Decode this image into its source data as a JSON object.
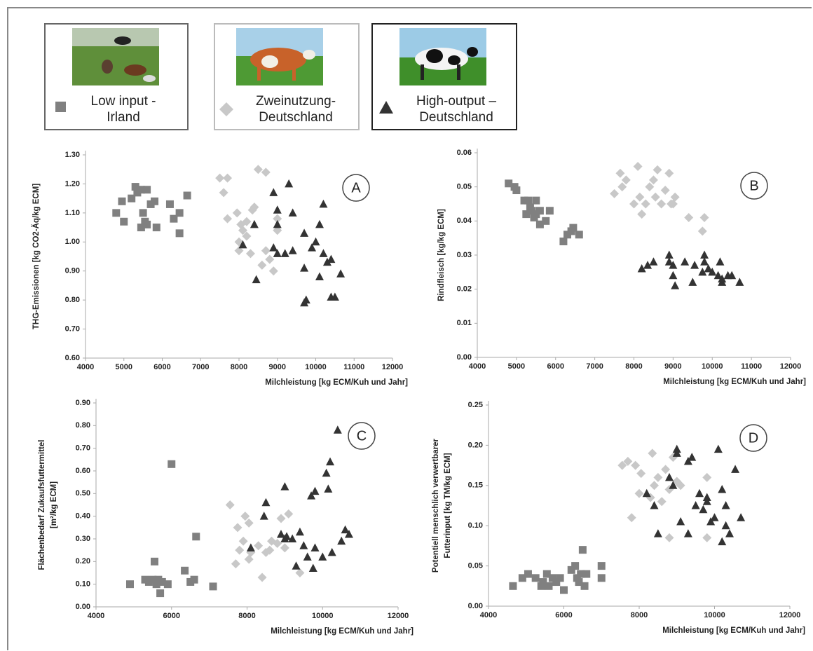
{
  "chart_data": [
    {
      "type": "scatter",
      "label": "A",
      "xlabel": "Milchleistung [kg ECM/Kuh und Jahr]",
      "ylabel": [
        "THG-Emissionen [kg CO2-Äq/kg ECM]"
      ],
      "xlim": [
        4000,
        12000
      ],
      "xticks": [
        4000,
        5000,
        6000,
        7000,
        8000,
        9000,
        10000,
        11000,
        12000
      ],
      "ylim": [
        0.6,
        1.3
      ],
      "yticks": [
        {
          "value": 0.6,
          "label": "0.60"
        },
        {
          "value": 0.7,
          "label": "0.70"
        },
        {
          "value": 0.8,
          "label": "0.80"
        },
        {
          "value": 0.9,
          "label": "0.90"
        },
        {
          "value": 1.0,
          "label": "1.00"
        },
        {
          "value": 1.1,
          "label": "1.10"
        },
        {
          "value": 1.2,
          "label": "1.20"
        },
        {
          "value": 1.3,
          "label": "1.30"
        }
      ],
      "series": [
        {
          "name": "Low input -\nIrland",
          "color": "#808080",
          "marker": "square",
          "x": [
            4800,
            4950,
            5000,
            5200,
            5300,
            5350,
            5450,
            5500,
            5550,
            5600,
            5700,
            5800,
            5850,
            6200,
            6300,
            6450,
            6450,
            6650,
            5450,
            5600
          ],
          "values": [
            1.1,
            1.14,
            1.07,
            1.15,
            1.19,
            1.17,
            1.05,
            1.1,
            1.07,
            1.18,
            1.13,
            1.14,
            1.05,
            1.13,
            1.08,
            1.1,
            1.03,
            1.16,
            1.18,
            1.06
          ]
        },
        {
          "name": "Zweinutzung-\nDeutschland",
          "color": "#c8c8c8",
          "marker": "diamond",
          "x": [
            7500,
            7700,
            7600,
            7700,
            7950,
            8050,
            8000,
            8100,
            8200,
            8350,
            8400,
            8500,
            8700,
            8300,
            8600,
            8700,
            8800,
            8900,
            9000,
            9000,
            8200,
            8000
          ],
          "values": [
            1.22,
            1.22,
            1.17,
            1.08,
            1.1,
            1.06,
            1.0,
            1.04,
            1.07,
            1.11,
            1.12,
            1.25,
            1.24,
            0.96,
            0.92,
            0.97,
            0.94,
            0.9,
            1.08,
            1.04,
            1.02,
            0.97
          ]
        },
        {
          "name": "High-output –\nDeutschland",
          "color": "#333333",
          "marker": "triangle",
          "x": [
            8400,
            8100,
            8450,
            8900,
            9000,
            9000,
            9300,
            9400,
            8900,
            9000,
            9200,
            9400,
            9700,
            9700,
            9750,
            9700,
            9900,
            10000,
            10100,
            10200,
            10200,
            10300,
            10400,
            10400,
            10500,
            10650,
            10100
          ],
          "values": [
            1.06,
            0.99,
            0.87,
            1.17,
            1.11,
            1.06,
            1.2,
            1.1,
            0.98,
            0.96,
            0.96,
            0.97,
            1.03,
            0.91,
            0.8,
            0.79,
            0.98,
            1.0,
            0.88,
            1.13,
            0.96,
            0.93,
            0.94,
            0.81,
            0.81,
            0.89,
            1.06
          ]
        }
      ]
    },
    {
      "type": "scatter",
      "label": "B",
      "xlabel": "Milchleistung [kg ECM/Kuh und Jahr]",
      "ylabel": [
        "Rindfleisch [kg/kg ECM]"
      ],
      "xlim": [
        4000,
        12000
      ],
      "xticks": [
        4000,
        5000,
        6000,
        7000,
        8000,
        9000,
        10000,
        11000,
        12000
      ],
      "ylim": [
        0,
        0.06
      ],
      "yticks": [
        {
          "value": 0,
          "label": "0.00"
        },
        0.01,
        0.02,
        0.03,
        0.04,
        0.05,
        0.06
      ],
      "series": [
        {
          "color": "#808080",
          "marker": "square",
          "x": [
            4800,
            4950,
            5000,
            5200,
            5250,
            5300,
            5350,
            5400,
            5500,
            5500,
            5600,
            5600,
            5750,
            5850,
            6200,
            6300,
            6400,
            6450,
            6600,
            5450
          ],
          "values": [
            0.051,
            0.05,
            0.049,
            0.046,
            0.042,
            0.046,
            0.044,
            0.043,
            0.046,
            0.042,
            0.039,
            0.043,
            0.04,
            0.043,
            0.034,
            0.036,
            0.037,
            0.038,
            0.036,
            0.041
          ]
        },
        {
          "color": "#c8c8c8",
          "marker": "diamond",
          "x": [
            7500,
            7650,
            7700,
            7800,
            8000,
            8100,
            8150,
            8200,
            8300,
            8400,
            8500,
            8550,
            8600,
            8700,
            8800,
            8900,
            8950,
            9050,
            9400,
            9750,
            9800,
            9000
          ],
          "values": [
            0.048,
            0.054,
            0.05,
            0.052,
            0.045,
            0.056,
            0.047,
            0.042,
            0.045,
            0.05,
            0.052,
            0.047,
            0.055,
            0.045,
            0.049,
            0.054,
            0.045,
            0.047,
            0.041,
            0.037,
            0.041,
            0.045
          ]
        },
        {
          "color": "#333333",
          "marker": "triangle",
          "x": [
            8200,
            8350,
            8500,
            8900,
            8900,
            9000,
            9000,
            9050,
            9300,
            9500,
            9550,
            9800,
            9800,
            9750,
            9900,
            10000,
            10150,
            10200,
            10250,
            10250,
            10400,
            10500,
            10700
          ],
          "values": [
            0.026,
            0.027,
            0.028,
            0.03,
            0.028,
            0.027,
            0.024,
            0.021,
            0.028,
            0.022,
            0.027,
            0.03,
            0.028,
            0.025,
            0.026,
            0.025,
            0.024,
            0.028,
            0.022,
            0.023,
            0.024,
            0.024,
            0.022
          ]
        }
      ]
    },
    {
      "type": "scatter",
      "label": "C",
      "xlabel": "Milchleistung [kg ECM/Kuh und Jahr]",
      "ylabel": [
        "Flächenbedarf Zukaufsfuttermittel",
        "[m²/kg ECM]"
      ],
      "xlim": [
        4000,
        12000
      ],
      "xticks": [
        4000,
        6000,
        8000,
        10000,
        12000
      ],
      "ylim": [
        0,
        0.9
      ],
      "yticks": [
        {
          "value": 0,
          "label": "0.00"
        },
        {
          "value": 0.1,
          "label": "0.10"
        },
        {
          "value": 0.2,
          "label": "0.20"
        },
        {
          "value": 0.3,
          "label": "0.30"
        },
        {
          "value": 0.4,
          "label": "0.40"
        },
        {
          "value": 0.5,
          "label": "0.50"
        },
        {
          "value": 0.6,
          "label": "0.60"
        },
        {
          "value": 0.7,
          "label": "0.70"
        },
        {
          "value": 0.8,
          "label": "0.80"
        },
        {
          "value": 0.9,
          "label": "0.90"
        }
      ],
      "series": [
        {
          "color": "#808080",
          "marker": "square",
          "x": [
            4900,
            5300,
            5400,
            5500,
            5550,
            5600,
            5700,
            5750,
            5900,
            6000,
            6350,
            6500,
            6600,
            6650,
            7100,
            5650
          ],
          "values": [
            0.1,
            0.12,
            0.11,
            0.12,
            0.2,
            0.1,
            0.06,
            0.11,
            0.1,
            0.63,
            0.16,
            0.11,
            0.12,
            0.31,
            0.09,
            0.12
          ]
        },
        {
          "color": "#c8c8c8",
          "marker": "diamond",
          "x": [
            7550,
            7700,
            7750,
            7800,
            7900,
            7950,
            8050,
            8050,
            8100,
            8300,
            8400,
            8500,
            8650,
            8800,
            8900,
            9000,
            9100,
            9400,
            8600
          ],
          "values": [
            0.45,
            0.19,
            0.35,
            0.25,
            0.29,
            0.4,
            0.37,
            0.21,
            0.24,
            0.27,
            0.13,
            0.24,
            0.29,
            0.28,
            0.39,
            0.26,
            0.41,
            0.15,
            0.25
          ]
        },
        {
          "color": "#333333",
          "marker": "triangle",
          "x": [
            8450,
            8500,
            8100,
            8900,
            9000,
            9000,
            9050,
            9200,
            9300,
            9400,
            9500,
            9600,
            9700,
            9800,
            9750,
            9800,
            10000,
            10100,
            10150,
            10200,
            10250,
            10400,
            10500,
            10600,
            10700
          ],
          "values": [
            0.4,
            0.46,
            0.26,
            0.32,
            0.53,
            0.3,
            0.31,
            0.3,
            0.18,
            0.33,
            0.27,
            0.22,
            0.49,
            0.51,
            0.17,
            0.26,
            0.22,
            0.59,
            0.52,
            0.64,
            0.24,
            0.78,
            0.29,
            0.34,
            0.32
          ]
        }
      ]
    },
    {
      "type": "scatter",
      "label": "D",
      "xlabel": "Milchleistung [kg ECM/Kuh und Jahr]",
      "ylabel": [
        "Potentiell menschlich verwertbarer",
        "Futterinput  [kg TM/kg ECM]"
      ],
      "xlim": [
        4000,
        12000
      ],
      "xticks": [
        4000,
        6000,
        8000,
        10000,
        12000
      ],
      "ylim": [
        0,
        0.25
      ],
      "yticks": [
        {
          "value": 0,
          "label": "0.00"
        },
        0.05,
        {
          "value": 0.1,
          "label": "0.10"
        },
        0.15,
        {
          "value": 0.2,
          "label": "0.20"
        },
        0.25
      ],
      "series": [
        {
          "color": "#808080",
          "marker": "square",
          "x": [
            4650,
            4900,
            5050,
            5250,
            5400,
            5450,
            5550,
            5600,
            5700,
            5800,
            5900,
            6000,
            6200,
            6300,
            6400,
            6450,
            6500,
            6550,
            6600,
            7000,
            7000,
            6350
          ],
          "values": [
            0.025,
            0.035,
            0.04,
            0.035,
            0.025,
            0.03,
            0.04,
            0.025,
            0.035,
            0.03,
            0.035,
            0.02,
            0.045,
            0.05,
            0.03,
            0.04,
            0.07,
            0.025,
            0.04,
            0.05,
            0.035,
            0.035
          ]
        },
        {
          "color": "#c8c8c8",
          "marker": "diamond",
          "x": [
            7550,
            7700,
            7800,
            7900,
            8000,
            8050,
            8300,
            8350,
            8400,
            8500,
            8700,
            8800,
            8800,
            8900,
            9000,
            8600,
            9100,
            9800,
            9800
          ],
          "values": [
            0.175,
            0.18,
            0.11,
            0.175,
            0.14,
            0.165,
            0.135,
            0.19,
            0.15,
            0.16,
            0.17,
            0.085,
            0.145,
            0.185,
            0.155,
            0.13,
            0.15,
            0.16,
            0.085
          ]
        },
        {
          "color": "#333333",
          "marker": "triangle",
          "x": [
            8200,
            8400,
            8500,
            8800,
            8900,
            9000,
            9000,
            9100,
            9300,
            9300,
            9400,
            9500,
            9600,
            9700,
            9800,
            9800,
            9900,
            10000,
            10100,
            10200,
            10200,
            10300,
            10400,
            10550,
            10700,
            10300
          ],
          "values": [
            0.14,
            0.125,
            0.09,
            0.16,
            0.15,
            0.195,
            0.19,
            0.105,
            0.18,
            0.09,
            0.185,
            0.125,
            0.14,
            0.12,
            0.135,
            0.13,
            0.105,
            0.11,
            0.195,
            0.145,
            0.08,
            0.1,
            0.09,
            0.17,
            0.11,
            0.125
          ]
        }
      ]
    }
  ]
}
